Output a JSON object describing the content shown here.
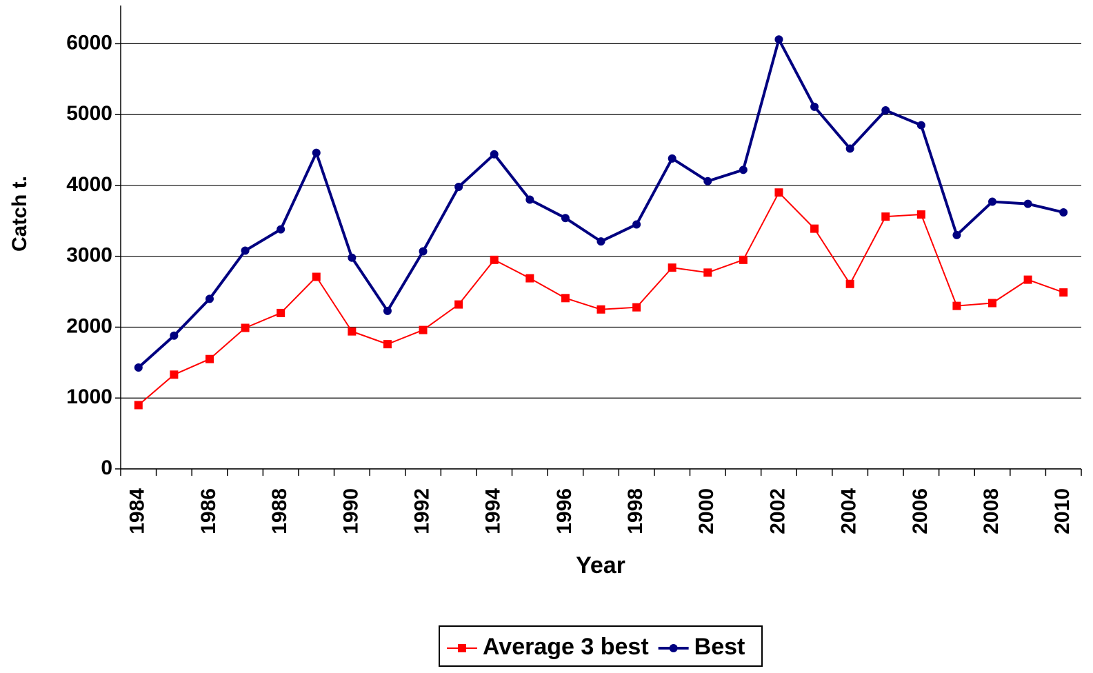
{
  "chart_data": {
    "type": "line",
    "x_label": "Year",
    "y_label": "Catch t.",
    "categories": [
      1984,
      null,
      1986,
      null,
      1988,
      null,
      1990,
      null,
      1992,
      null,
      1994,
      null,
      1996,
      null,
      1998,
      null,
      2000,
      null,
      2002,
      null,
      2004,
      null,
      2006,
      null,
      2008,
      null,
      2010
    ],
    "series": [
      {
        "name": "Average 3 best",
        "color": "#ff0000",
        "marker": "square",
        "values": [
          900,
          1330,
          1550,
          1990,
          2200,
          2710,
          1940,
          1760,
          1960,
          2320,
          2950,
          2690,
          2410,
          2250,
          2280,
          2840,
          2770,
          2950,
          3900,
          3390,
          2610,
          3560,
          3590,
          2300,
          2340,
          2670,
          2490
        ]
      },
      {
        "name": "Best",
        "color": "#000080",
        "marker": "circle",
        "values": [
          1430,
          1880,
          2400,
          3080,
          3380,
          4460,
          2980,
          2230,
          3070,
          3980,
          4440,
          3800,
          3540,
          3210,
          3450,
          4380,
          4060,
          4220,
          6060,
          5110,
          4520,
          5060,
          4850,
          3300,
          3770,
          3740,
          3620
        ]
      }
    ],
    "ylim": [
      0,
      6500
    ],
    "yticks": [
      0,
      1000,
      2000,
      3000,
      4000,
      5000,
      6000
    ],
    "grid": true,
    "legend": "bottom"
  }
}
